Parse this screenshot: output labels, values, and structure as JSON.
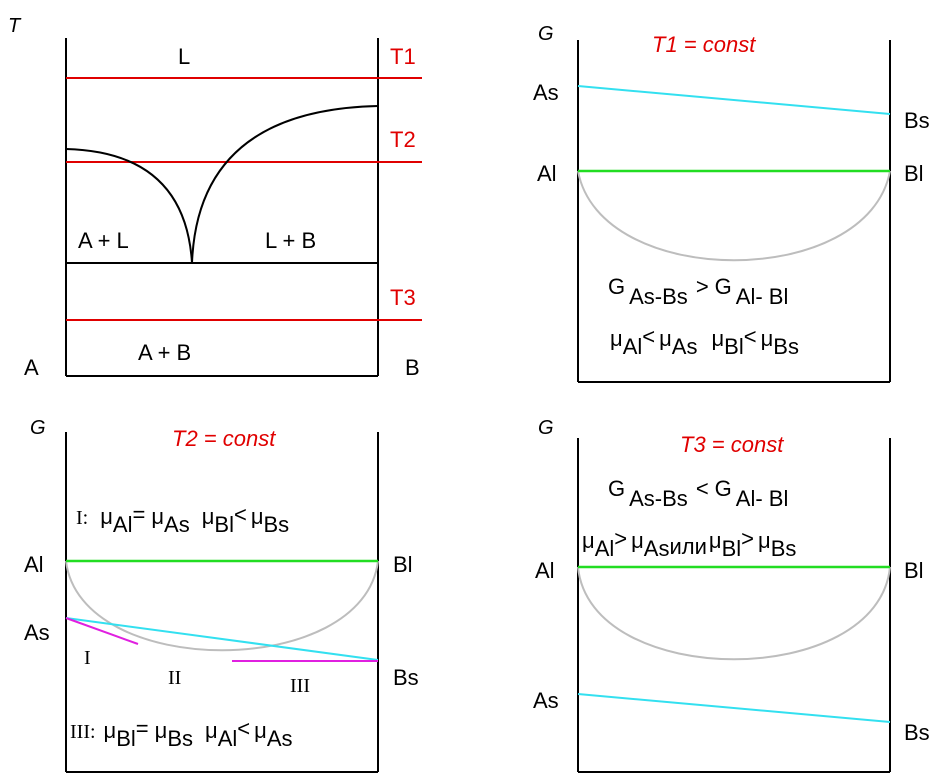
{
  "colors": {
    "frame": "#000000",
    "temperature_line": "#e00000",
    "liquid_line": "#22dd22",
    "solid_line": "#33e0f0",
    "curve": "#bdbdbd",
    "tangent": "#e020e0"
  },
  "phase_diagram": {
    "axis_label": "T",
    "left_label": "A",
    "right_label": "B",
    "region_liquid": "L",
    "region_A_L": "A + L",
    "region_L_B": "L + B",
    "region_A_B": "A + B",
    "t1": "T1",
    "t2": "T2",
    "t3": "T3"
  },
  "panel_t1": {
    "axis_label": "G",
    "title": "T1 = const",
    "as": "As",
    "bs": "Bs",
    "al": "Al",
    "bl": "Bl",
    "rel1": {
      "g1": "G",
      "g1_sub": "As-Bs",
      "op": ">",
      "g2": "G",
      "g2_sub": "Al- Bl"
    },
    "rel2": {
      "mu": "μ",
      "a_sub1": "Al",
      "op1": "<",
      "a_sub2": "As",
      "b_sub1": "Bl",
      "op2": "<",
      "b_sub2": "Bs"
    }
  },
  "panel_t2": {
    "axis_label": "G",
    "title": "T2 = const",
    "al": "Al",
    "bl": "Bl",
    "as": "As",
    "bs": "Bs",
    "zone1": "I",
    "zone2": "II",
    "zone3": "III",
    "rel1": {
      "prefix": "I:",
      "mu": "μ",
      "s1": "Al",
      "op1": "=",
      "s2": "As",
      "s3": "Bl",
      "op2": "<",
      "s4": "Bs"
    },
    "rel3": {
      "prefix": "III:",
      "mu": "μ",
      "s1": "Bl",
      "op1": "=",
      "s2": "Bs",
      "s3": "Al",
      "op2": "<",
      "s4": "As"
    }
  },
  "panel_t3": {
    "axis_label": "G",
    "title": "T3 = const",
    "al": "Al",
    "bl": "Bl",
    "as": "As",
    "bs": "Bs",
    "rel1": {
      "g1": "G",
      "g1_sub": "As-Bs",
      "op": "<",
      "g2": "G",
      "g2_sub": "Al- Bl"
    },
    "rel2": {
      "mu": "μ",
      "s1": "Al",
      "op1": ">",
      "s2": "As",
      "or": "или",
      "s3": "Bl",
      "op2": ">",
      "s4": "Bs"
    }
  }
}
